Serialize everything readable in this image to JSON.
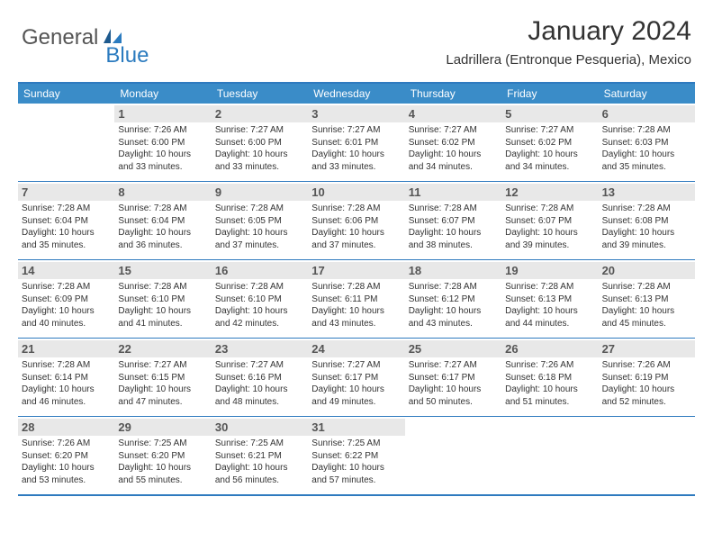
{
  "logo": {
    "general": "General",
    "blue": "Blue"
  },
  "title": "January 2024",
  "subtitle": "Ladrillera (Entronque Pesqueria), Mexico",
  "colors": {
    "header_bg": "#3a8cc8",
    "header_text": "#ffffff",
    "border": "#2e7abf",
    "daynum_bg": "#e8e8e8",
    "text": "#333333"
  },
  "weekdays": [
    "Sunday",
    "Monday",
    "Tuesday",
    "Wednesday",
    "Thursday",
    "Friday",
    "Saturday"
  ],
  "weeks": [
    [
      null,
      {
        "n": "1",
        "sr": "7:26 AM",
        "ss": "6:00 PM",
        "dl": "10 hours and 33 minutes."
      },
      {
        "n": "2",
        "sr": "7:27 AM",
        "ss": "6:00 PM",
        "dl": "10 hours and 33 minutes."
      },
      {
        "n": "3",
        "sr": "7:27 AM",
        "ss": "6:01 PM",
        "dl": "10 hours and 33 minutes."
      },
      {
        "n": "4",
        "sr": "7:27 AM",
        "ss": "6:02 PM",
        "dl": "10 hours and 34 minutes."
      },
      {
        "n": "5",
        "sr": "7:27 AM",
        "ss": "6:02 PM",
        "dl": "10 hours and 34 minutes."
      },
      {
        "n": "6",
        "sr": "7:28 AM",
        "ss": "6:03 PM",
        "dl": "10 hours and 35 minutes."
      }
    ],
    [
      {
        "n": "7",
        "sr": "7:28 AM",
        "ss": "6:04 PM",
        "dl": "10 hours and 35 minutes."
      },
      {
        "n": "8",
        "sr": "7:28 AM",
        "ss": "6:04 PM",
        "dl": "10 hours and 36 minutes."
      },
      {
        "n": "9",
        "sr": "7:28 AM",
        "ss": "6:05 PM",
        "dl": "10 hours and 37 minutes."
      },
      {
        "n": "10",
        "sr": "7:28 AM",
        "ss": "6:06 PM",
        "dl": "10 hours and 37 minutes."
      },
      {
        "n": "11",
        "sr": "7:28 AM",
        "ss": "6:07 PM",
        "dl": "10 hours and 38 minutes."
      },
      {
        "n": "12",
        "sr": "7:28 AM",
        "ss": "6:07 PM",
        "dl": "10 hours and 39 minutes."
      },
      {
        "n": "13",
        "sr": "7:28 AM",
        "ss": "6:08 PM",
        "dl": "10 hours and 39 minutes."
      }
    ],
    [
      {
        "n": "14",
        "sr": "7:28 AM",
        "ss": "6:09 PM",
        "dl": "10 hours and 40 minutes."
      },
      {
        "n": "15",
        "sr": "7:28 AM",
        "ss": "6:10 PM",
        "dl": "10 hours and 41 minutes."
      },
      {
        "n": "16",
        "sr": "7:28 AM",
        "ss": "6:10 PM",
        "dl": "10 hours and 42 minutes."
      },
      {
        "n": "17",
        "sr": "7:28 AM",
        "ss": "6:11 PM",
        "dl": "10 hours and 43 minutes."
      },
      {
        "n": "18",
        "sr": "7:28 AM",
        "ss": "6:12 PM",
        "dl": "10 hours and 43 minutes."
      },
      {
        "n": "19",
        "sr": "7:28 AM",
        "ss": "6:13 PM",
        "dl": "10 hours and 44 minutes."
      },
      {
        "n": "20",
        "sr": "7:28 AM",
        "ss": "6:13 PM",
        "dl": "10 hours and 45 minutes."
      }
    ],
    [
      {
        "n": "21",
        "sr": "7:28 AM",
        "ss": "6:14 PM",
        "dl": "10 hours and 46 minutes."
      },
      {
        "n": "22",
        "sr": "7:27 AM",
        "ss": "6:15 PM",
        "dl": "10 hours and 47 minutes."
      },
      {
        "n": "23",
        "sr": "7:27 AM",
        "ss": "6:16 PM",
        "dl": "10 hours and 48 minutes."
      },
      {
        "n": "24",
        "sr": "7:27 AM",
        "ss": "6:17 PM",
        "dl": "10 hours and 49 minutes."
      },
      {
        "n": "25",
        "sr": "7:27 AM",
        "ss": "6:17 PM",
        "dl": "10 hours and 50 minutes."
      },
      {
        "n": "26",
        "sr": "7:26 AM",
        "ss": "6:18 PM",
        "dl": "10 hours and 51 minutes."
      },
      {
        "n": "27",
        "sr": "7:26 AM",
        "ss": "6:19 PM",
        "dl": "10 hours and 52 minutes."
      }
    ],
    [
      {
        "n": "28",
        "sr": "7:26 AM",
        "ss": "6:20 PM",
        "dl": "10 hours and 53 minutes."
      },
      {
        "n": "29",
        "sr": "7:25 AM",
        "ss": "6:20 PM",
        "dl": "10 hours and 55 minutes."
      },
      {
        "n": "30",
        "sr": "7:25 AM",
        "ss": "6:21 PM",
        "dl": "10 hours and 56 minutes."
      },
      {
        "n": "31",
        "sr": "7:25 AM",
        "ss": "6:22 PM",
        "dl": "10 hours and 57 minutes."
      },
      null,
      null,
      null
    ]
  ],
  "labels": {
    "sunrise": "Sunrise: ",
    "sunset": "Sunset: ",
    "daylight": "Daylight: "
  }
}
